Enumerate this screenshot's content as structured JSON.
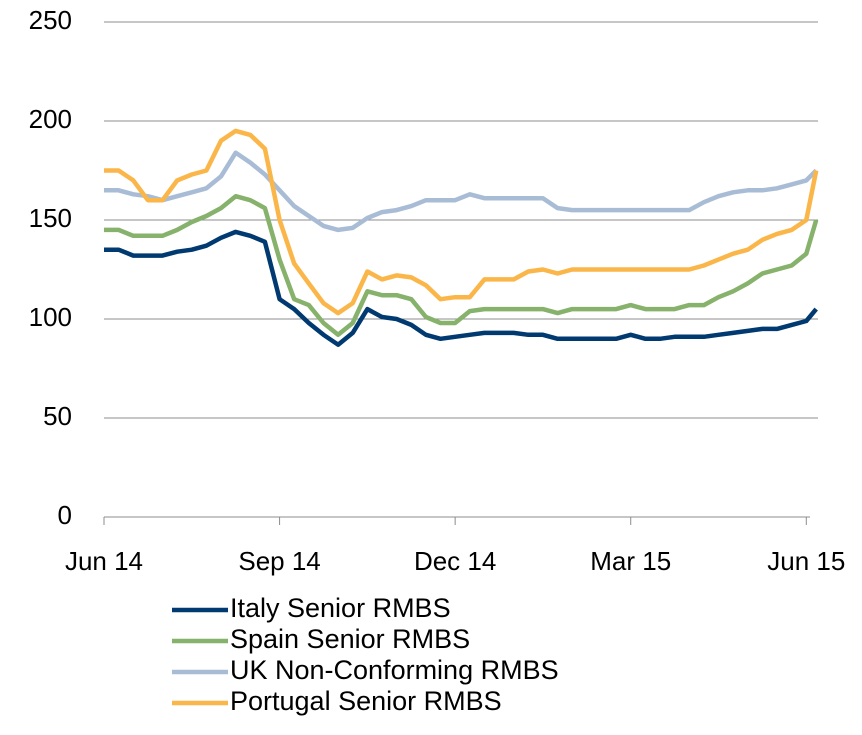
{
  "chart_data": {
    "type": "line",
    "x": [
      0,
      0.25,
      0.5,
      0.75,
      1,
      1.25,
      1.5,
      1.75,
      2,
      2.25,
      2.5,
      2.75,
      3,
      3.25,
      3.5,
      3.75,
      4,
      4.25,
      4.5,
      4.75,
      5,
      5.25,
      5.5,
      5.75,
      6,
      6.25,
      6.5,
      6.75,
      7,
      7.25,
      7.5,
      7.75,
      8,
      8.25,
      8.5,
      8.75,
      9,
      9.25,
      9.5,
      9.75,
      10,
      10.25,
      10.5,
      10.75,
      11,
      11.25,
      11.5,
      11.75,
      12,
      12.17
    ],
    "xlim": [
      0,
      12.2
    ],
    "xticks": [
      {
        "value": 0,
        "label": "Jun 14"
      },
      {
        "value": 3,
        "label": "Sep 14"
      },
      {
        "value": 6,
        "label": "Dec 14"
      },
      {
        "value": 9,
        "label": "Mar 15"
      },
      {
        "value": 12,
        "label": "Jun 15"
      }
    ],
    "ylim": [
      0,
      250
    ],
    "yticks": [
      0,
      50,
      100,
      150,
      200,
      250
    ],
    "grid": true,
    "legend": "bottom",
    "series": [
      {
        "name": "Italy Senior RMBS",
        "color": "#003a70",
        "values": [
          135,
          135,
          132,
          132,
          132,
          134,
          135,
          137,
          141,
          144,
          142,
          139,
          110,
          105,
          98,
          92,
          87,
          93,
          105,
          101,
          100,
          97,
          92,
          90,
          91,
          92,
          93,
          93,
          93,
          92,
          92,
          90,
          90,
          90,
          90,
          90,
          92,
          90,
          90,
          91,
          91,
          91,
          92,
          93,
          94,
          95,
          95,
          97,
          99,
          105
        ]
      },
      {
        "name": "Spain Senior RMBS",
        "color": "#86b26c",
        "values": [
          145,
          145,
          142,
          142,
          142,
          145,
          149,
          152,
          156,
          162,
          160,
          156,
          130,
          110,
          107,
          98,
          92,
          98,
          114,
          112,
          112,
          110,
          101,
          98,
          98,
          104,
          105,
          105,
          105,
          105,
          105,
          103,
          105,
          105,
          105,
          105,
          107,
          105,
          105,
          105,
          107,
          107,
          111,
          114,
          118,
          123,
          125,
          127,
          133,
          150
        ]
      },
      {
        "name": "UK Non-Conforming RMBS",
        "color": "#a9bcd6",
        "values": [
          165,
          165,
          163,
          162,
          160,
          162,
          164,
          166,
          172,
          184,
          179,
          173,
          165,
          157,
          152,
          147,
          145,
          146,
          151,
          154,
          155,
          157,
          160,
          160,
          160,
          163,
          161,
          161,
          161,
          161,
          161,
          156,
          155,
          155,
          155,
          155,
          155,
          155,
          155,
          155,
          155,
          159,
          162,
          164,
          165,
          165,
          166,
          168,
          170,
          175
        ]
      },
      {
        "name": "Portugal Senior RMBS",
        "color": "#fbb64a",
        "values": [
          175,
          175,
          170,
          160,
          160,
          170,
          173,
          175,
          190,
          195,
          193,
          186,
          150,
          128,
          118,
          108,
          103,
          108,
          124,
          120,
          122,
          121,
          117,
          110,
          111,
          111,
          120,
          120,
          120,
          124,
          125,
          123,
          125,
          125,
          125,
          125,
          125,
          125,
          125,
          125,
          125,
          127,
          130,
          133,
          135,
          140,
          143,
          145,
          150,
          175
        ]
      }
    ]
  }
}
